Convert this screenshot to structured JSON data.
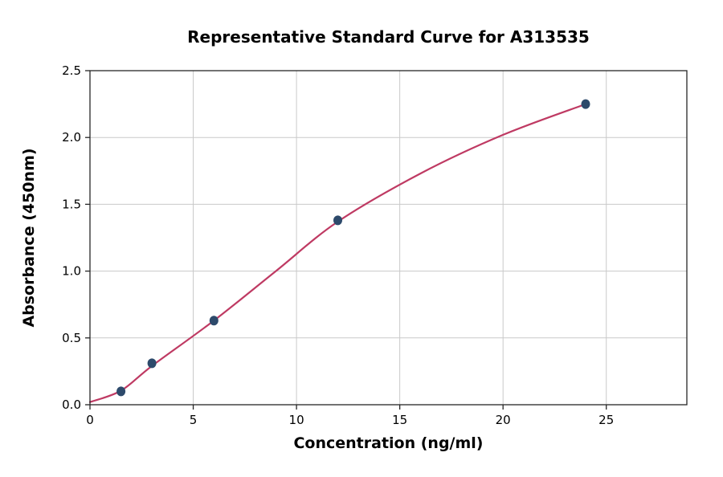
{
  "chart_data": {
    "type": "scatter",
    "title": "Representative Standard Curve for A313535",
    "xlabel": "Concentration (ng/ml)",
    "ylabel": "Absorbance (450nm)",
    "xlim": [
      0,
      28.9
    ],
    "ylim": [
      0,
      2.5
    ],
    "x_ticks": [
      0,
      5,
      10,
      15,
      20,
      25
    ],
    "x_tick_labels": [
      "0",
      "5",
      "10",
      "15",
      "20",
      "25"
    ],
    "y_ticks": [
      0,
      0.5,
      1.0,
      1.5,
      2.0,
      2.5
    ],
    "y_tick_labels": [
      "0.0",
      "0.5",
      "1.0",
      "1.5",
      "2.0",
      "2.5"
    ],
    "grid": true,
    "legend_position": "none",
    "points": {
      "name": "standard-measurements",
      "x": [
        1.5,
        3,
        6,
        12,
        24
      ],
      "y": [
        0.1,
        0.31,
        0.63,
        1.38,
        2.25
      ],
      "color": "#2d4a6b",
      "marker": "circle",
      "radius": 5.5
    },
    "fit_curve": {
      "name": "fitted-standard-curve",
      "color": "#bf3a63",
      "width": 2.2,
      "samples": [
        [
          0,
          0.02
        ],
        [
          1.5,
          0.105
        ],
        [
          3,
          0.29
        ],
        [
          6,
          0.63
        ],
        [
          9,
          1.0
        ],
        [
          12,
          1.37
        ],
        [
          16,
          1.73
        ],
        [
          20,
          2.02
        ],
        [
          24,
          2.25
        ]
      ]
    },
    "colors": {
      "grid": "#c9c9c9",
      "spine": "#262626",
      "text": "#000000",
      "background": "#ffffff"
    }
  }
}
